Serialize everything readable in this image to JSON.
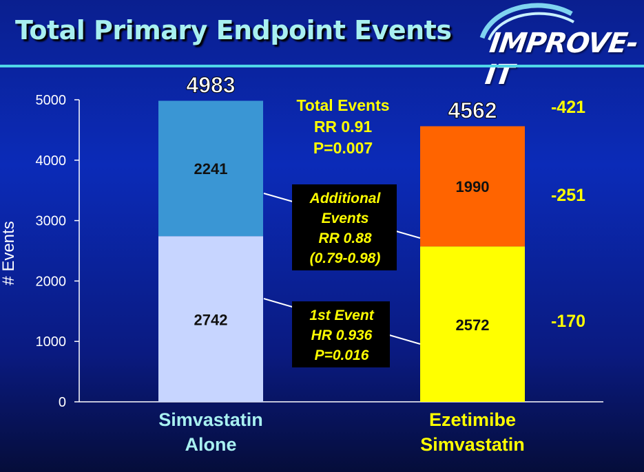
{
  "slide_title": "Total Primary Endpoint Events",
  "logo_text": "IMPROVE-IT",
  "colors": {
    "simva_recurrent": "#3a96d4",
    "simva_first": "#c7d5ff",
    "eze_recurrent": "#ff6400",
    "eze_first": "#ffff00",
    "annotation_text": "#ffff00",
    "category_simva": "#a8f0f0",
    "category_eze": "#ffff00"
  },
  "chart_data": {
    "type": "bar",
    "stacked": true,
    "ylabel": "# Events",
    "ylim": [
      0,
      5000
    ],
    "yticks": [
      "0",
      "1000",
      "2000",
      "3000",
      "4000",
      "5000"
    ],
    "categories": [
      "Simvastatin\nAlone",
      "Ezetimibe\nSimvastatin"
    ],
    "segments": [
      {
        "first": 2742,
        "recurrent": 2241,
        "total": 4983
      },
      {
        "first": 2572,
        "recurrent": 1990,
        "total": 4562
      }
    ],
    "totals_labels": [
      "4983",
      "4562"
    ],
    "segment_labels": [
      [
        "2742",
        "2241"
      ],
      [
        "2572",
        "1990"
      ]
    ],
    "differences": {
      "total": "-421",
      "recurrent": "-251",
      "first": "-170"
    },
    "total_events_box": [
      "Total Events",
      "RR 0.91",
      "P=0.007"
    ],
    "additional_events_box": [
      "Additional",
      "Events",
      "RR 0.88",
      "(0.79-0.98)"
    ],
    "first_event_box": [
      "1st Event",
      "HR 0.936",
      "P=0.016"
    ]
  }
}
